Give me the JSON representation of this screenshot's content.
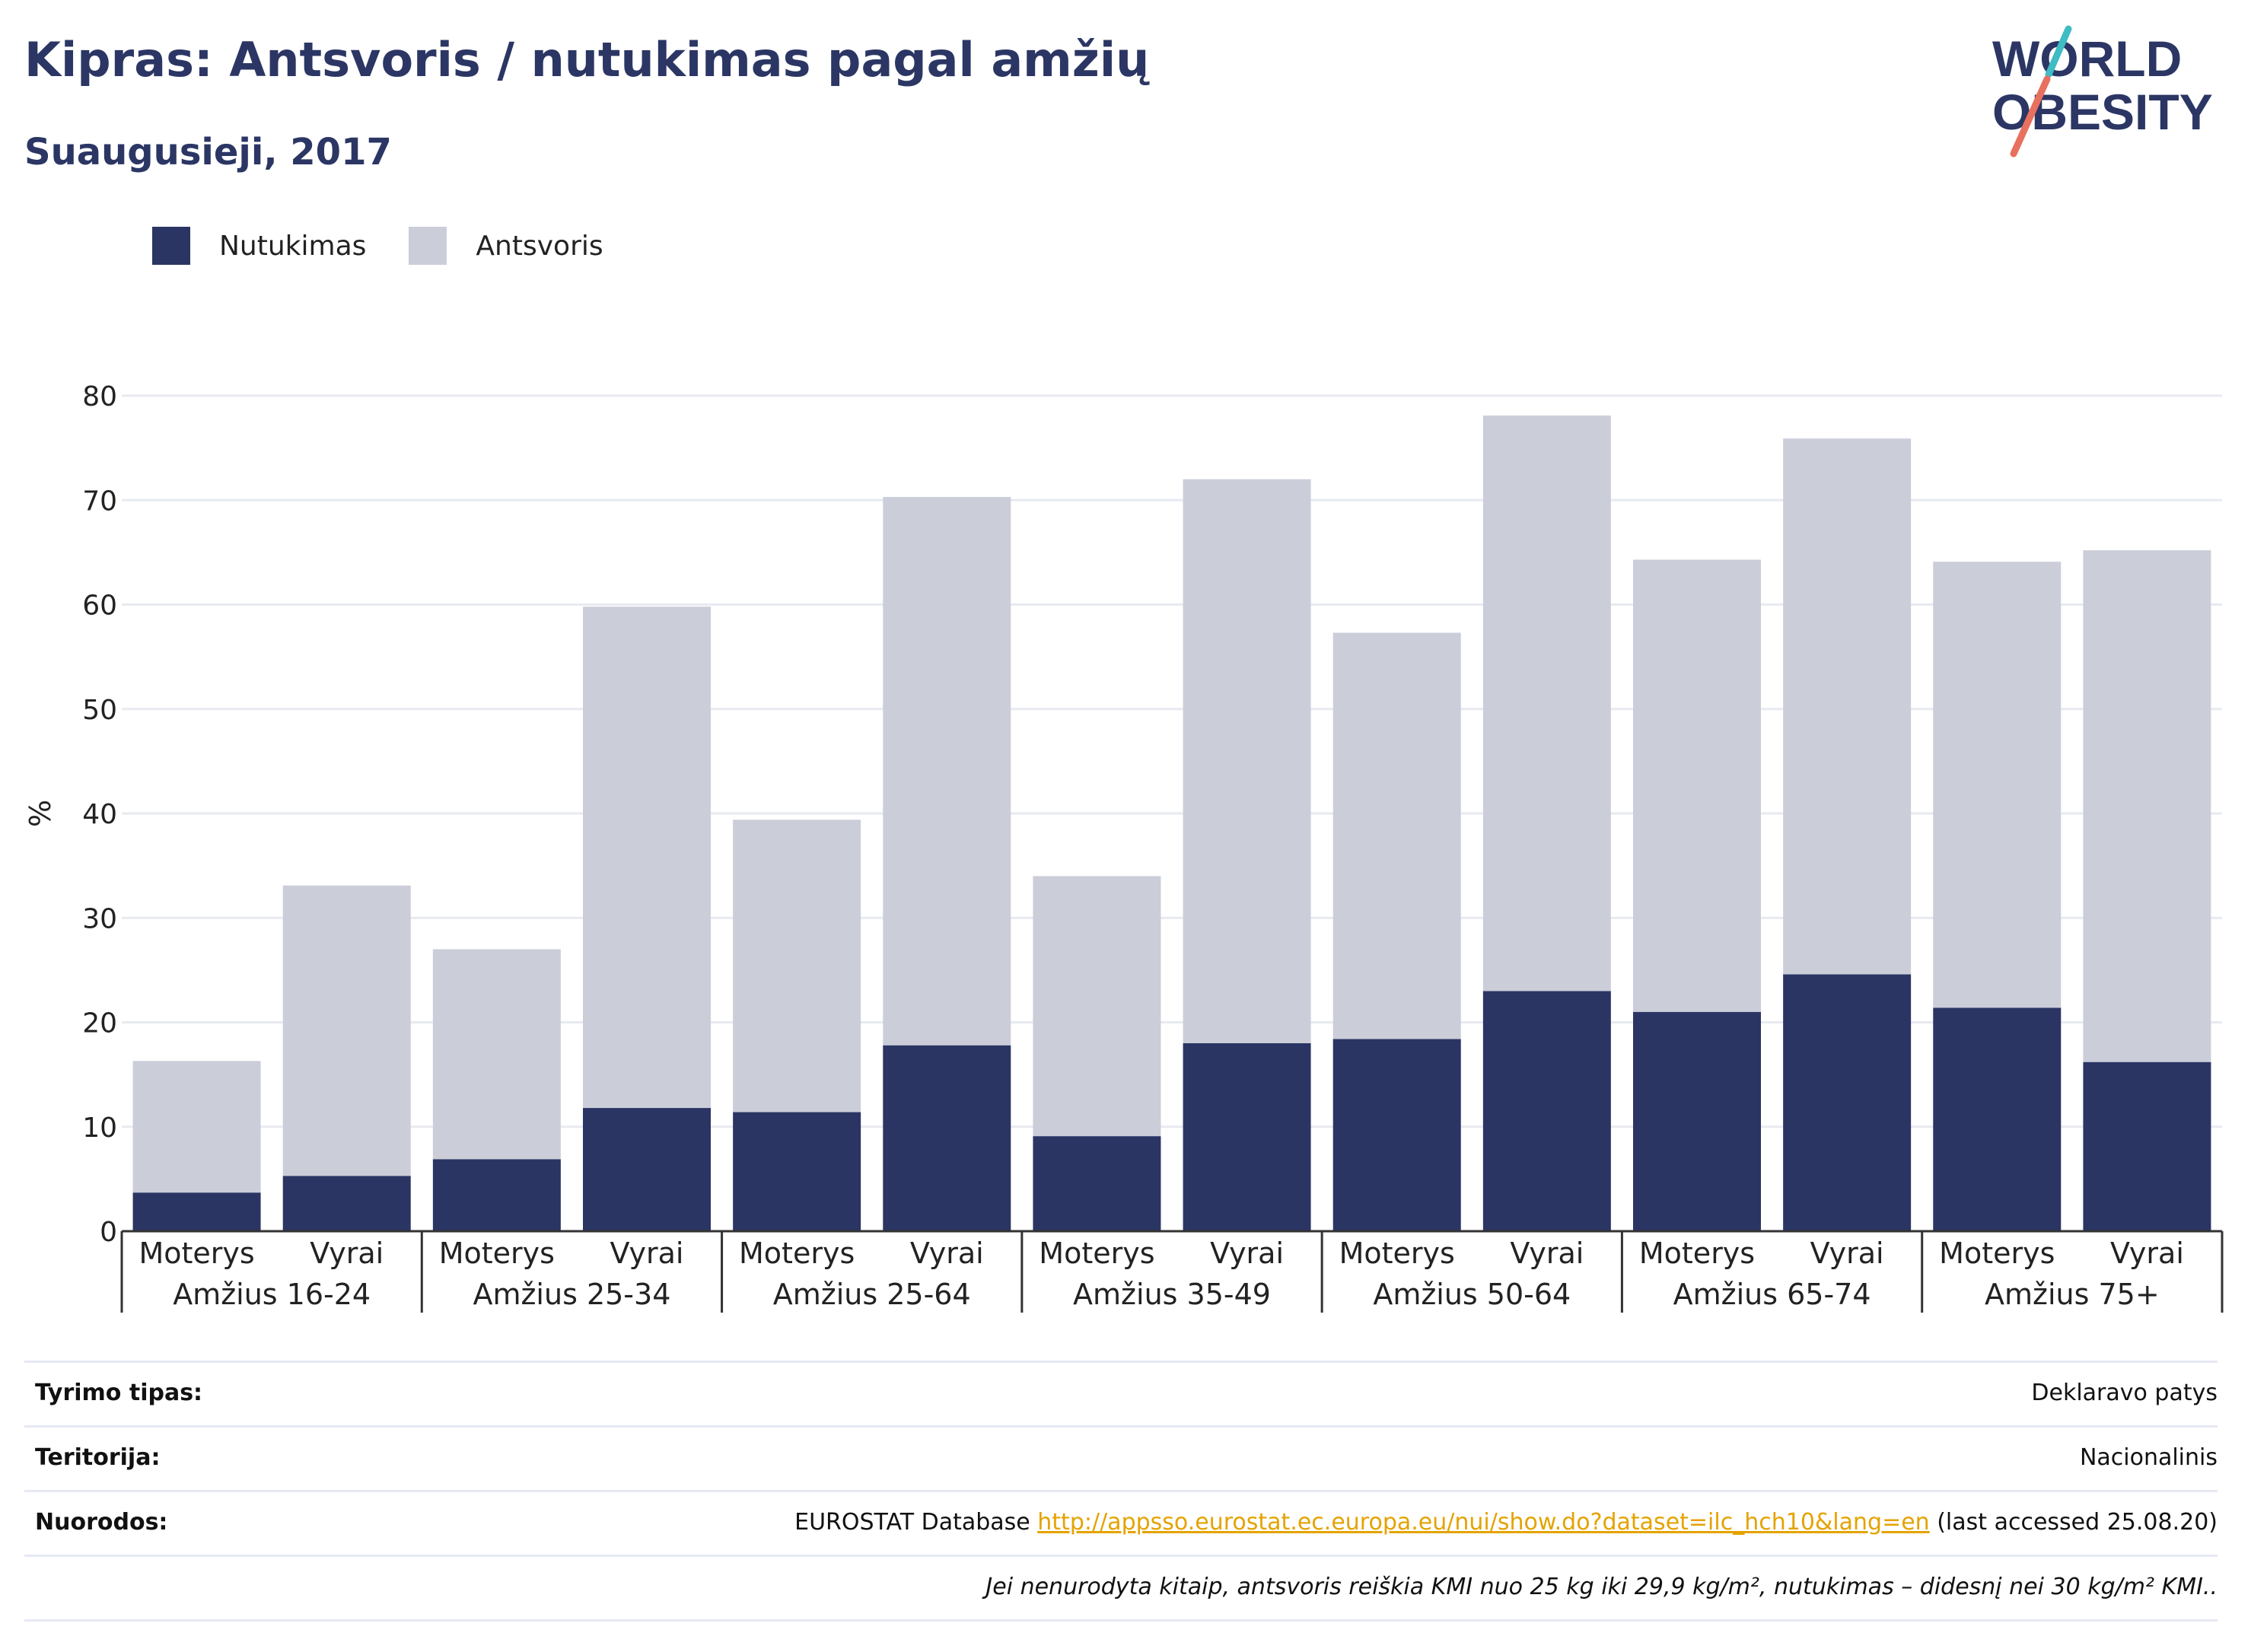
{
  "header": {
    "title": "Kipras: Antsvoris / nutukimas pagal amžių",
    "subtitle": "Suaugusieji, 2017"
  },
  "logo": {
    "line1": "WORLD",
    "line2": "OBESITY"
  },
  "colors": {
    "obesity": "#2a3563",
    "overweight": "#cbcdd9",
    "accent_link": "#e4a300",
    "title": "#2b3664"
  },
  "chart_data": {
    "type": "bar",
    "stacked": true,
    "title": "",
    "ylabel": "%",
    "ylim": [
      0,
      80
    ],
    "yticks": [
      0,
      10,
      20,
      30,
      40,
      50,
      60,
      70,
      80
    ],
    "grid": true,
    "legend_position": "top-left",
    "groups": [
      "Amžius 16-24",
      "Amžius 25-34",
      "Amžius 25-64",
      "Amžius 35-49",
      "Amžius 50-64",
      "Amžius 65-74",
      "Amžius 75+"
    ],
    "categories": [
      "Moterys",
      "Vyrai",
      "Moterys",
      "Vyrai",
      "Moterys",
      "Vyrai",
      "Moterys",
      "Vyrai",
      "Moterys",
      "Vyrai",
      "Moterys",
      "Vyrai",
      "Moterys",
      "Vyrai"
    ],
    "series": [
      {
        "name": "Nutukimas",
        "values": [
          3.7,
          5.3,
          6.9,
          11.8,
          11.4,
          17.8,
          9.1,
          18.0,
          18.4,
          23.0,
          21.0,
          24.6,
          21.4,
          16.2
        ]
      },
      {
        "name": "Antsvoris",
        "values": [
          12.6,
          27.8,
          20.1,
          48.0,
          28.0,
          52.5,
          24.9,
          54.0,
          38.9,
          55.1,
          43.3,
          51.3,
          42.7,
          49.0
        ]
      }
    ]
  },
  "info": {
    "rows": [
      {
        "label": "Tyrimo tipas:",
        "value": "Deklaravo patys"
      },
      {
        "label": "Teritorija:",
        "value": "Nacionalinis"
      },
      {
        "label": "Nuorodos:",
        "value_prefix": "EUROSTAT Database ",
        "link": "http://appsso.eurostat.ec.europa.eu/nui/show.do?dataset=ilc_hch10&lang=en",
        "value_suffix": " (last accessed 25.08.20)"
      }
    ],
    "note": "Jei nenurodyta kitaip, antsvoris reiškia KMI nuo 25 kg iki 29,9 kg/m², nutukimas – didesnį nei 30 kg/m² KMI.."
  }
}
